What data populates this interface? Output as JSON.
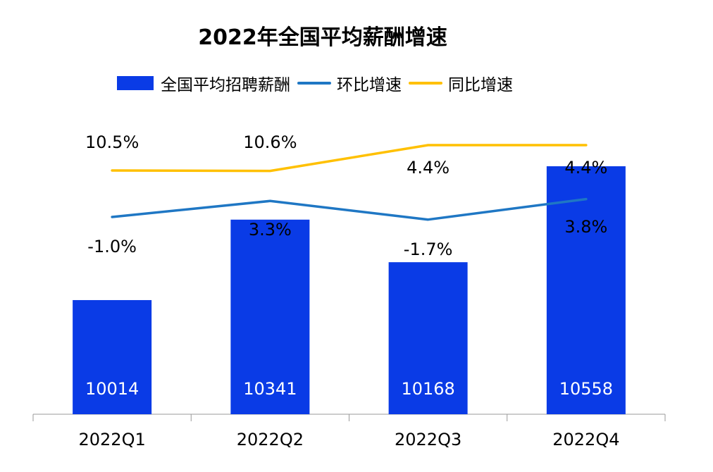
{
  "chart_data": {
    "type": "bar",
    "title": "2022年全国平均薪酬增速",
    "categories": [
      "2022Q1",
      "2022Q2",
      "2022Q3",
      "2022Q4"
    ],
    "bars": {
      "name": "全国平均招聘薪酬",
      "values": [
        10014,
        10341,
        10168,
        10558
      ],
      "labels": [
        "10014",
        "10341",
        "10168",
        "10558"
      ],
      "color": "#0a3be6"
    },
    "lines": [
      {
        "name": "环比增速",
        "values": [
          -1.0,
          3.3,
          -1.7,
          3.8
        ],
        "labels": [
          "-1.0%",
          "3.3%",
          "-1.7%",
          "3.8%"
        ],
        "color": "#1f77c4"
      },
      {
        "name": "同比增速",
        "values": [
          10.5,
          10.6,
          4.4,
          4.4
        ],
        "labels": [
          "10.5%",
          "10.6%",
          "4.4%",
          "4.4%"
        ],
        "color": "#ffc000"
      }
    ],
    "legend_position": "top",
    "grid": false
  }
}
